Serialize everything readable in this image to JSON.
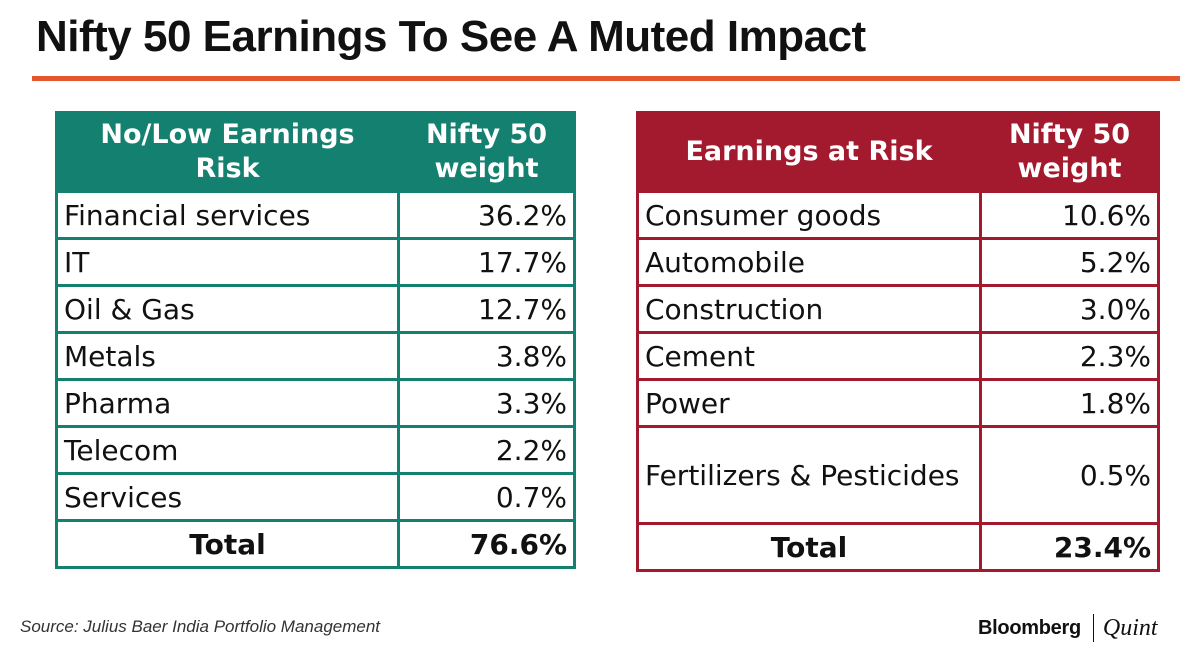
{
  "title": "Nifty 50 Earnings To See A Muted Impact",
  "colors": {
    "accent_rule": "#e4572e",
    "low_risk_header": "#14806f",
    "at_risk_header": "#a3192d"
  },
  "chart_data": [
    {
      "type": "table",
      "columns": [
        "No/Low Earnings Risk",
        "Nifty 50 weight"
      ],
      "header_lines": {
        "cat": [
          "No/Low Earnings",
          "Risk"
        ],
        "val": [
          "Nifty 50",
          "weight"
        ]
      },
      "rows": [
        {
          "category": "Financial services",
          "weight": "36.2%"
        },
        {
          "category": "IT",
          "weight": "17.7%"
        },
        {
          "category": "Oil & Gas",
          "weight": "12.7%"
        },
        {
          "category": "Metals",
          "weight": "3.8%"
        },
        {
          "category": "Pharma",
          "weight": "3.3%"
        },
        {
          "category": "Telecom",
          "weight": "2.2%"
        },
        {
          "category": "Services",
          "weight": "0.7%"
        }
      ],
      "total": {
        "label": "Total",
        "weight": "76.6%"
      }
    },
    {
      "type": "table",
      "columns": [
        "Earnings at Risk",
        "Nifty 50 weight"
      ],
      "header_lines": {
        "cat": [
          "Earnings at Risk"
        ],
        "val": [
          "Nifty 50",
          "weight"
        ]
      },
      "rows": [
        {
          "category": "Consumer goods",
          "weight": "10.6%"
        },
        {
          "category": "Automobile",
          "weight": "5.2%"
        },
        {
          "category": "Construction",
          "weight": "3.0%"
        },
        {
          "category": "Cement",
          "weight": "2.3%"
        },
        {
          "category": "Power",
          "weight": "1.8%"
        },
        {
          "category": "Fertilizers & Pesticides",
          "weight": "0.5%"
        }
      ],
      "total": {
        "label": "Total",
        "weight": "23.4%"
      }
    }
  ],
  "footer": {
    "source": "Source: Julius Baer India Portfolio Management",
    "logo_left": "Bloomberg",
    "logo_right": "Quint"
  }
}
